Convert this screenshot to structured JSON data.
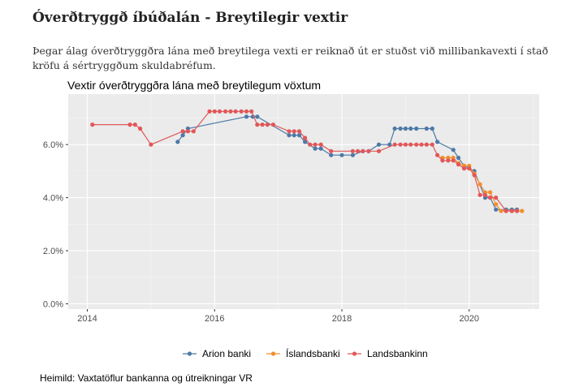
{
  "page": {
    "heading": "Óverðtryggð íbúðalán - Breytilegir vextir",
    "intro": "Þegar álag óverðtryggðra lána með breytilega vexti er reiknað út er stuðst við millibankavexti í stað kröfu á sértryggðum skuldabréfum.",
    "source": "Heimild: Vaxtatöflur bankanna og útreikningar VR"
  },
  "chart_data": {
    "type": "line",
    "title": "Vextir óverðtryggðra lána með breytilegum vöxtum",
    "xlabel": "",
    "ylabel": "",
    "xlim": [
      2013.7,
      2021.1
    ],
    "ylim": [
      -0.2,
      7.9
    ],
    "x_ticks": [
      2014,
      2016,
      2018,
      2020
    ],
    "x_tick_labels": [
      "2014",
      "2016",
      "2018",
      "2020"
    ],
    "y_ticks": [
      0,
      2,
      4,
      6
    ],
    "y_tick_labels": [
      "0.0%",
      "2.0%",
      "4.0%",
      "6.0%"
    ],
    "grid": true,
    "legend_position": "bottom",
    "series": [
      {
        "name": "Arion banki",
        "color": "#4e79a7",
        "points": [
          [
            2015.42,
            6.1
          ],
          [
            2015.5,
            6.35
          ],
          [
            2015.58,
            6.6
          ],
          [
            2016.5,
            7.05
          ],
          [
            2016.6,
            7.05
          ],
          [
            2016.67,
            7.05
          ],
          [
            2017.17,
            6.35
          ],
          [
            2017.25,
            6.35
          ],
          [
            2017.33,
            6.35
          ],
          [
            2017.42,
            6.1
          ],
          [
            2017.58,
            5.85
          ],
          [
            2017.67,
            5.85
          ],
          [
            2017.83,
            5.6
          ],
          [
            2018.0,
            5.6
          ],
          [
            2018.17,
            5.6
          ],
          [
            2018.33,
            5.75
          ],
          [
            2018.42,
            5.75
          ],
          [
            2018.58,
            6.0
          ],
          [
            2018.75,
            6.0
          ],
          [
            2018.83,
            6.6
          ],
          [
            2018.92,
            6.6
          ],
          [
            2019.0,
            6.6
          ],
          [
            2019.08,
            6.6
          ],
          [
            2019.17,
            6.6
          ],
          [
            2019.33,
            6.6
          ],
          [
            2019.42,
            6.6
          ],
          [
            2019.5,
            6.1
          ],
          [
            2019.75,
            5.8
          ],
          [
            2019.83,
            5.5
          ],
          [
            2019.92,
            5.2
          ],
          [
            2020.08,
            5.0
          ],
          [
            2020.25,
            4.0
          ],
          [
            2020.33,
            4.0
          ],
          [
            2020.42,
            3.55
          ],
          [
            2020.58,
            3.55
          ],
          [
            2020.67,
            3.55
          ],
          [
            2020.75,
            3.55
          ]
        ]
      },
      {
        "name": "Íslandsbanki",
        "color": "#f28e2b",
        "points": [
          [
            2019.58,
            5.5
          ],
          [
            2019.67,
            5.5
          ],
          [
            2019.75,
            5.5
          ],
          [
            2019.83,
            5.3
          ],
          [
            2019.92,
            5.2
          ],
          [
            2020.0,
            5.2
          ],
          [
            2020.08,
            4.9
          ],
          [
            2020.17,
            4.5
          ],
          [
            2020.25,
            4.2
          ],
          [
            2020.33,
            4.2
          ],
          [
            2020.42,
            3.75
          ],
          [
            2020.5,
            3.5
          ],
          [
            2020.58,
            3.5
          ],
          [
            2020.67,
            3.5
          ],
          [
            2020.75,
            3.5
          ],
          [
            2020.83,
            3.5
          ]
        ]
      },
      {
        "name": "Landsbankinn",
        "color": "#e15759",
        "points": [
          [
            2014.08,
            6.75
          ],
          [
            2014.67,
            6.75
          ],
          [
            2014.75,
            6.75
          ],
          [
            2014.83,
            6.6
          ],
          [
            2015.0,
            6.0
          ],
          [
            2015.5,
            6.5
          ],
          [
            2015.58,
            6.5
          ],
          [
            2015.67,
            6.5
          ],
          [
            2015.92,
            7.25
          ],
          [
            2016.0,
            7.25
          ],
          [
            2016.08,
            7.25
          ],
          [
            2016.17,
            7.25
          ],
          [
            2016.25,
            7.25
          ],
          [
            2016.33,
            7.25
          ],
          [
            2016.42,
            7.25
          ],
          [
            2016.5,
            7.25
          ],
          [
            2016.58,
            7.25
          ],
          [
            2016.67,
            6.75
          ],
          [
            2016.75,
            6.75
          ],
          [
            2016.83,
            6.75
          ],
          [
            2016.92,
            6.75
          ],
          [
            2017.17,
            6.5
          ],
          [
            2017.25,
            6.5
          ],
          [
            2017.33,
            6.5
          ],
          [
            2017.42,
            6.25
          ],
          [
            2017.5,
            6.0
          ],
          [
            2017.58,
            6.0
          ],
          [
            2017.67,
            6.0
          ],
          [
            2017.83,
            5.75
          ],
          [
            2018.17,
            5.75
          ],
          [
            2018.25,
            5.75
          ],
          [
            2018.33,
            5.75
          ],
          [
            2018.42,
            5.75
          ],
          [
            2018.58,
            5.75
          ],
          [
            2018.83,
            6.0
          ],
          [
            2018.92,
            6.0
          ],
          [
            2019.0,
            6.0
          ],
          [
            2019.08,
            6.0
          ],
          [
            2019.17,
            6.0
          ],
          [
            2019.25,
            6.0
          ],
          [
            2019.33,
            6.0
          ],
          [
            2019.42,
            6.0
          ],
          [
            2019.5,
            5.6
          ],
          [
            2019.58,
            5.4
          ],
          [
            2019.67,
            5.4
          ],
          [
            2019.75,
            5.4
          ],
          [
            2019.83,
            5.25
          ],
          [
            2019.92,
            5.1
          ],
          [
            2020.0,
            5.1
          ],
          [
            2020.08,
            4.85
          ],
          [
            2020.17,
            4.1
          ],
          [
            2020.25,
            4.1
          ],
          [
            2020.33,
            4.0
          ],
          [
            2020.42,
            4.0
          ],
          [
            2020.58,
            3.5
          ],
          [
            2020.67,
            3.5
          ],
          [
            2020.75,
            3.5
          ]
        ]
      }
    ]
  }
}
